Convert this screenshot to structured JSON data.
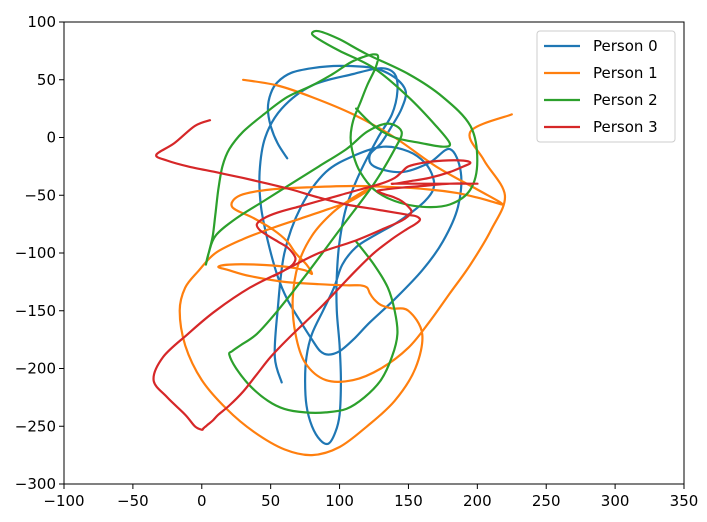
{
  "chart_data": {
    "type": "line",
    "title": "",
    "xlabel": "",
    "ylabel": "",
    "xlim": [
      -100,
      350
    ],
    "ylim": [
      -300,
      100
    ],
    "xticks": [
      -100,
      -50,
      0,
      50,
      100,
      150,
      200,
      250,
      300,
      350
    ],
    "yticks": [
      -300,
      -250,
      -200,
      -150,
      -100,
      -50,
      0,
      50,
      100
    ],
    "xtick_labels": [
      "−100",
      "−50",
      "0",
      "50",
      "100",
      "150",
      "200",
      "250",
      "300",
      "350"
    ],
    "ytick_labels": [
      "−300",
      "−250",
      "−200",
      "−150",
      "−100",
      "−50",
      "0",
      "50",
      "100"
    ],
    "grid": false,
    "legend": {
      "position": "top-right"
    },
    "series": [
      {
        "name": "Person 0",
        "color": "#1f77b4",
        "x": [
          62,
          55,
          50,
          48,
          50,
          55,
          65,
          80,
          100,
          125,
          140,
          148,
          145,
          138,
          130,
          122,
          125,
          145,
          165,
          180,
          188,
          186,
          175,
          160,
          140,
          122,
          110,
          100,
          92,
          86,
          80,
          72,
          62,
          55,
          48,
          43,
          42,
          46,
          58,
          80,
          110,
          130,
          140,
          142,
          138,
          128,
          115,
          105,
          100,
          98,
          98,
          100,
          101,
          100,
          97,
          92,
          86,
          80,
          76,
          75,
          76,
          80,
          88,
          96,
          102,
          112,
          125,
          140,
          152,
          162,
          168,
          168,
          162,
          150,
          132,
          112,
          90,
          72,
          60,
          55,
          53,
          58
        ],
        "y": [
          -18,
          -5,
          10,
          25,
          38,
          48,
          56,
          60,
          62,
          60,
          52,
          40,
          25,
          10,
          -5,
          -15,
          -25,
          -30,
          -22,
          -10,
          -30,
          -60,
          -90,
          -115,
          -140,
          -160,
          -175,
          -185,
          -188,
          -185,
          -175,
          -160,
          -140,
          -120,
          -90,
          -60,
          -30,
          0,
          25,
          45,
          55,
          60,
          55,
          40,
          20,
          0,
          -30,
          -60,
          -90,
          -120,
          -150,
          -180,
          -210,
          -240,
          -255,
          -265,
          -262,
          -250,
          -232,
          -210,
          -190,
          -170,
          -150,
          -130,
          -110,
          -95,
          -85,
          -75,
          -65,
          -55,
          -45,
          -35,
          -22,
          -12,
          -8,
          -15,
          -30,
          -60,
          -100,
          -150,
          -190,
          -212
        ]
      },
      {
        "name": "Person 1",
        "color": "#ff7f0e",
        "x": [
          225,
          195,
          205,
          220,
          210,
          195,
          180,
          165,
          150,
          130,
          110,
          90,
          75,
          68,
          66,
          70,
          80,
          95,
          110,
          120,
          122,
          118,
          108,
          92,
          72,
          52,
          30,
          10,
          -2,
          -12,
          -16,
          -12,
          0,
          18,
          38,
          60,
          80,
          100,
          120,
          140,
          155,
          160,
          150,
          138,
          130,
          125,
          122,
          120,
          115,
          105,
          85,
          60,
          35,
          20,
          12,
          20,
          40,
          62,
          75,
          80,
          76,
          68,
          62,
          52,
          38,
          22,
          28,
          50,
          80,
          110,
          140,
          165,
          185,
          200,
          212,
          218,
          215,
          200,
          170,
          140,
          110,
          80,
          55,
          30
        ],
        "y": [
          20,
          5,
          -20,
          -50,
          -80,
          -110,
          -135,
          -160,
          -182,
          -200,
          -210,
          -210,
          -195,
          -170,
          -140,
          -110,
          -85,
          -65,
          -52,
          -45,
          -44,
          -48,
          -55,
          -62,
          -70,
          -78,
          -88,
          -100,
          -115,
          -130,
          -150,
          -180,
          -210,
          -235,
          -255,
          -270,
          -275,
          -268,
          -250,
          -228,
          -200,
          -170,
          -150,
          -148,
          -145,
          -140,
          -135,
          -130,
          -128,
          -128,
          -127,
          -125,
          -120,
          -115,
          -112,
          -110,
          -110,
          -112,
          -115,
          -118,
          -110,
          -100,
          -90,
          -80,
          -70,
          -60,
          -50,
          -45,
          -43,
          -42,
          -43,
          -45,
          -48,
          -52,
          -56,
          -58,
          -55,
          -45,
          -25,
          0,
          20,
          35,
          45,
          50
        ]
      },
      {
        "name": "Person 2",
        "color": "#2ca02c",
        "x": [
          112,
          125,
          140,
          160,
          175,
          180,
          170,
          150,
          125,
          100,
          85,
          80,
          85,
          100,
          120,
          150,
          175,
          195,
          200,
          195,
          180,
          160,
          140,
          125,
          115,
          110,
          108,
          110,
          115,
          120,
          126,
          128,
          125,
          118,
          108,
          95,
          80,
          62,
          45,
          30,
          20,
          15,
          12,
          10,
          8,
          5,
          3,
          5,
          10,
          25,
          45,
          65,
          85,
          105,
          120,
          135,
          145,
          140,
          125,
          100,
          75,
          55,
          40,
          28,
          22,
          20,
          25,
          35,
          48,
          60,
          75,
          90,
          105,
          118,
          130,
          138,
          142,
          140,
          135,
          125,
          112
        ],
        "y": [
          25,
          10,
          0,
          -5,
          -8,
          -5,
          10,
          35,
          60,
          75,
          85,
          90,
          92,
          85,
          72,
          55,
          35,
          10,
          -20,
          -45,
          -58,
          -60,
          -55,
          -45,
          -30,
          -15,
          0,
          15,
          30,
          45,
          60,
          70,
          72,
          70,
          65,
          55,
          45,
          35,
          20,
          5,
          -10,
          -25,
          -45,
          -65,
          -85,
          -100,
          -110,
          -100,
          -85,
          -70,
          -55,
          -40,
          -25,
          -10,
          5,
          12,
          5,
          -10,
          -40,
          -80,
          -120,
          -150,
          -170,
          -180,
          -185,
          -188,
          -200,
          -215,
          -228,
          -235,
          -238,
          -238,
          -235,
          -225,
          -210,
          -190,
          -170,
          -150,
          -130,
          -110,
          -90
        ]
      },
      {
        "name": "Person 3",
        "color": "#d62728",
        "x": [
          6,
          -5,
          -20,
          -33,
          -25,
          -10,
          10,
          30,
          48,
          65,
          85,
          105,
          125,
          140,
          150,
          155,
          158,
          158,
          155,
          148,
          138,
          125,
          112,
          100,
          88,
          75,
          62,
          50,
          40,
          30,
          20,
          12,
          8,
          5,
          3,
          2,
          1,
          0,
          -5,
          -12,
          -25,
          -35,
          -28,
          -10,
          10,
          35,
          60,
          85,
          110,
          130,
          145,
          152,
          150,
          145,
          140,
          135,
          130,
          128,
          140,
          160,
          180,
          195,
          200,
          198,
          190,
          180,
          170,
          160,
          150,
          142,
          138,
          140,
          150,
          165,
          180,
          190,
          195,
          190,
          175,
          160,
          150,
          145,
          140,
          130,
          115,
          100,
          85,
          70,
          55,
          45,
          40,
          42,
          48,
          55,
          62,
          66,
          68,
          66,
          60,
          52
        ],
        "y": [
          15,
          10,
          -5,
          -15,
          -20,
          -25,
          -30,
          -35,
          -40,
          -45,
          -52,
          -58,
          -62,
          -65,
          -67,
          -68,
          -70,
          -72,
          -75,
          -80,
          -88,
          -100,
          -115,
          -130,
          -145,
          -160,
          -175,
          -190,
          -205,
          -220,
          -232,
          -240,
          -245,
          -248,
          -250,
          -251,
          -252,
          -253,
          -250,
          -240,
          -225,
          -210,
          -190,
          -170,
          -150,
          -130,
          -115,
          -100,
          -90,
          -80,
          -72,
          -65,
          -60,
          -55,
          -52,
          -50,
          -48,
          -46,
          -44,
          -42,
          -40,
          -40,
          -40,
          -40,
          -40,
          -40,
          -40,
          -40,
          -40,
          -40,
          -40,
          -40,
          -38,
          -35,
          -30,
          -25,
          -22,
          -20,
          -20,
          -22,
          -25,
          -30,
          -35,
          -40,
          -45,
          -50,
          -55,
          -60,
          -65,
          -70,
          -75,
          -80,
          -85,
          -90,
          -95,
          -100,
          -105,
          -110,
          -115,
          -120
        ]
      }
    ]
  }
}
